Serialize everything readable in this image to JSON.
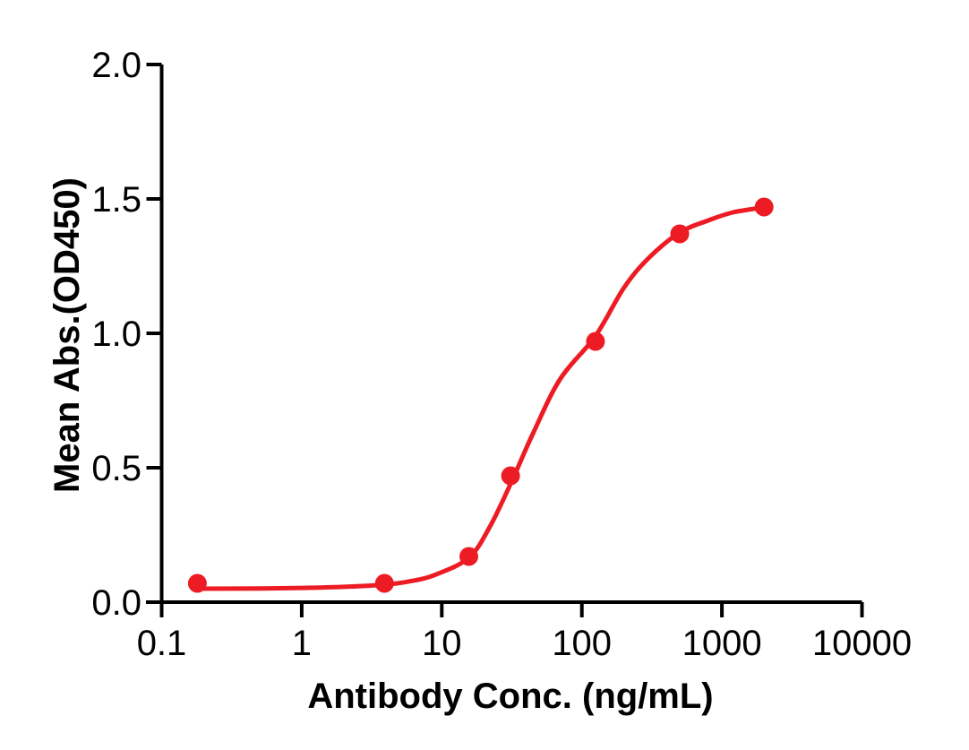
{
  "figure": {
    "background": "#FFFFFF"
  },
  "chart_data": {
    "type": "scatter",
    "title": "",
    "xlabel": "Antibody Conc. (ng/mL)",
    "ylabel": "Mean Abs.(OD450)",
    "x_scale": "log",
    "xlim": [
      0.1,
      10000
    ],
    "ylim": [
      0.0,
      2.0
    ],
    "x_ticks": [
      0.1,
      1,
      10,
      100,
      1000,
      10000
    ],
    "x_tick_labels": [
      "0.1",
      "1",
      "10",
      "100",
      "1000",
      "10000"
    ],
    "y_ticks": [
      0.0,
      0.5,
      1.0,
      1.5,
      2.0
    ],
    "y_tick_labels": [
      "0.0",
      "0.5",
      "1.0",
      "1.5",
      "2.0"
    ],
    "grid": false,
    "legend": "none",
    "colors": {
      "accent": "#ED1C24",
      "axis": "#000000",
      "background": "#FFFFFF"
    },
    "series": [
      {
        "marker": "circle",
        "color": "#ED1C24",
        "points": [
          [
            0.18,
            0.07
          ],
          [
            3.9,
            0.07
          ],
          [
            15.6,
            0.17
          ],
          [
            31,
            0.47
          ],
          [
            125,
            0.97
          ],
          [
            500,
            1.37
          ],
          [
            2000,
            1.47
          ]
        ]
      }
    ],
    "fit_curve": {
      "model": "4PL sigmoid (dose-response)",
      "color": "#ED1C24",
      "points": [
        [
          0.18,
          0.05
        ],
        [
          0.5,
          0.051
        ],
        [
          1,
          0.053
        ],
        [
          2,
          0.057
        ],
        [
          3.9,
          0.065
        ],
        [
          6,
          0.078
        ],
        [
          9,
          0.102
        ],
        [
          15.6,
          0.165
        ],
        [
          22,
          0.28
        ],
        [
          31,
          0.44
        ],
        [
          45,
          0.63
        ],
        [
          70,
          0.83
        ],
        [
          125,
          0.99
        ],
        [
          200,
          1.17
        ],
        [
          300,
          1.28
        ],
        [
          500,
          1.375
        ],
        [
          800,
          1.42
        ],
        [
          1200,
          1.45
        ],
        [
          2000,
          1.468
        ]
      ]
    }
  }
}
